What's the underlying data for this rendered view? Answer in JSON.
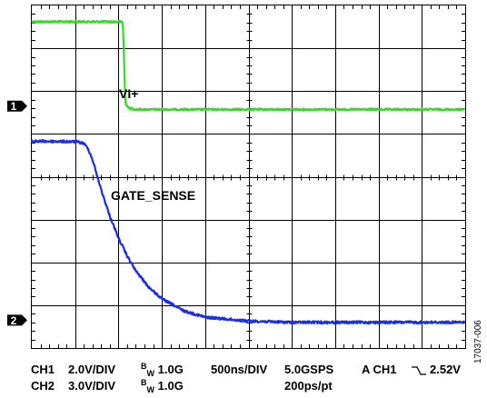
{
  "chart_data": {
    "type": "line",
    "title": "",
    "xlabel": "",
    "ylabel": "",
    "grid": true,
    "x_divisions": 10,
    "y_divisions": 8,
    "time_per_div_ns": 500,
    "channels": [
      {
        "marker": "1",
        "volts_per_div": 2.0,
        "marker_div_from_top": 2.35
      },
      {
        "marker": "2",
        "volts_per_div": 3.0,
        "marker_div_from_top": 7.35
      }
    ],
    "series": [
      {
        "name": "VI+",
        "color": "#33dd22",
        "x_ns": [
          0,
          1000,
          1050,
          1080,
          1120,
          1200,
          5000
        ],
        "y_div_from_top": [
          0.38,
          0.38,
          0.38,
          2.28,
          2.4,
          2.43,
          2.43
        ]
      },
      {
        "name": "GATE_SENSE",
        "color": "#1a2ee8",
        "x_ns": [
          0,
          500,
          600,
          650,
          700,
          800,
          900,
          1000,
          1100,
          1200,
          1350,
          1500,
          1750,
          2000,
          2500,
          3000,
          3500,
          4000,
          5000
        ],
        "y_div_from_top": [
          3.17,
          3.18,
          3.22,
          3.35,
          3.6,
          4.3,
          4.92,
          5.43,
          5.85,
          6.2,
          6.58,
          6.85,
          7.13,
          7.28,
          7.37,
          7.4,
          7.4,
          7.4,
          7.4
        ]
      }
    ]
  },
  "footer": {
    "ch1": "CH1",
    "ch1_scale": "2.0V/DIV",
    "ch1_bw_b": "B",
    "ch1_bw_w": "W",
    "ch1_bw_val": "1.0G",
    "ch2": "CH2",
    "ch2_scale": "3.0V/DIV",
    "ch2_bw_b": "B",
    "ch2_bw_w": "W",
    "ch2_bw_val": "1.0G",
    "timebase": "500ns/DIV",
    "sample_rate": "5.0GSPS",
    "resolution": "200ps/pt",
    "trigger_prefix": "A CH1",
    "trigger_level": "2.52V"
  },
  "figure_id": "17037-006"
}
